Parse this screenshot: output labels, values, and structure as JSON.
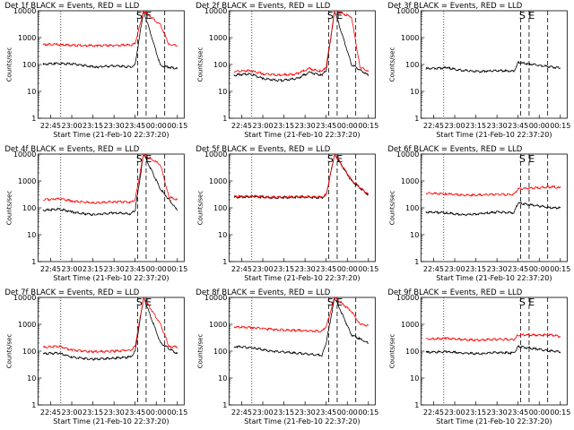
{
  "colors": {
    "events": "#000000",
    "lld": "#ff0000",
    "axis": "#000000"
  },
  "chart_data": [
    {
      "type": "line",
      "title": "Det 1f BLACK = Events, RED = LLD",
      "xlabel": "Start Time (21-Feb-10 22:37:20)",
      "ylabel": "Counts/sec",
      "xticks": [
        "22:45",
        "23:00",
        "23:15",
        "23:30",
        "23:45",
        "00:00",
        "00:15"
      ],
      "yticks": [
        "1",
        "10",
        "100",
        "1000",
        "10000"
      ],
      "markers": [
        "S",
        "E"
      ],
      "scale": "log",
      "ylim": [
        1,
        10000
      ],
      "series": [
        {
          "values": [
            [
              22.66,
              100
            ],
            [
              22.8,
              110
            ],
            [
              23.0,
              105
            ],
            [
              23.3,
              80
            ],
            [
              23.5,
              90
            ],
            [
              23.7,
              80
            ],
            [
              23.75,
              100
            ],
            [
              23.85,
              10000
            ],
            [
              24.05,
              90
            ],
            [
              24.25,
              70
            ]
          ]
        },
        {
          "values": [
            [
              22.66,
              550
            ],
            [
              22.8,
              560
            ],
            [
              23.0,
              520
            ],
            [
              23.3,
              500
            ],
            [
              23.5,
              520
            ],
            [
              23.7,
              530
            ],
            [
              23.75,
              600
            ],
            [
              23.85,
              10000
            ],
            [
              24.05,
              3000
            ],
            [
              24.15,
              550
            ],
            [
              24.25,
              520
            ]
          ]
        }
      ]
    },
    {
      "type": "line",
      "title": "Det 2f BLACK = Events, RED = LLD",
      "xlabel": "Start Time (21-Feb-10 22:37:20)",
      "ylabel": "Counts/sec",
      "xticks": [
        "22:45",
        "23:00",
        "23:15",
        "23:30",
        "23:45",
        "00:00",
        "00:15"
      ],
      "yticks": [
        "1",
        "10",
        "100",
        "1000",
        "10000"
      ],
      "markers": [
        "S",
        "E"
      ],
      "scale": "log",
      "ylim": [
        1,
        10000
      ],
      "series": [
        {
          "values": [
            [
              22.66,
              40
            ],
            [
              22.85,
              45
            ],
            [
              23.0,
              30
            ],
            [
              23.2,
              25
            ],
            [
              23.4,
              30
            ],
            [
              23.55,
              50
            ],
            [
              23.7,
              40
            ],
            [
              23.75,
              60
            ],
            [
              23.85,
              10000
            ],
            [
              24.05,
              100
            ],
            [
              24.25,
              40
            ]
          ]
        },
        {
          "values": [
            [
              22.66,
              55
            ],
            [
              22.85,
              60
            ],
            [
              23.0,
              45
            ],
            [
              23.2,
              40
            ],
            [
              23.4,
              45
            ],
            [
              23.55,
              70
            ],
            [
              23.7,
              55
            ],
            [
              23.75,
              80
            ],
            [
              23.85,
              10000
            ],
            [
              24.05,
              6000
            ],
            [
              24.15,
              80
            ],
            [
              24.25,
              55
            ]
          ]
        }
      ]
    },
    {
      "type": "line",
      "title": "Det 3f BLACK = Events, RED = LLD",
      "xlabel": "Start Time (21-Feb-10 22:37:20)",
      "ylabel": "Counts/sec",
      "xticks": [
        "22:45",
        "23:00",
        "23:15",
        "23:30",
        "23:45",
        "00:00",
        "00:15"
      ],
      "yticks": [
        "1",
        "10",
        "100",
        "1000",
        "10000"
      ],
      "markers": [
        "S",
        "E"
      ],
      "scale": "log",
      "ylim": [
        1,
        10000
      ],
      "series": [
        {
          "values": [
            [
              22.66,
              70
            ],
            [
              22.9,
              75
            ],
            [
              23.1,
              60
            ],
            [
              23.3,
              55
            ],
            [
              23.5,
              60
            ],
            [
              23.7,
              55
            ],
            [
              23.75,
              120
            ],
            [
              24.15,
              80
            ],
            [
              24.25,
              75
            ]
          ]
        }
      ]
    },
    {
      "type": "line",
      "title": "Det 4f BLACK = Events, RED = LLD",
      "xlabel": "Start Time (21-Feb-10 22:37:20)",
      "ylabel": "Counts/sec",
      "xticks": [
        "22:45",
        "23:00",
        "23:15",
        "23:30",
        "23:45",
        "00:00",
        "00:15"
      ],
      "yticks": [
        "1",
        "10",
        "100",
        "1000",
        "10000"
      ],
      "markers": [
        "S",
        "E"
      ],
      "scale": "log",
      "ylim": [
        1,
        10000
      ],
      "series": [
        {
          "values": [
            [
              22.66,
              80
            ],
            [
              22.85,
              90
            ],
            [
              23.0,
              70
            ],
            [
              23.25,
              55
            ],
            [
              23.5,
              65
            ],
            [
              23.7,
              60
            ],
            [
              23.75,
              80
            ],
            [
              23.85,
              10000
            ],
            [
              24.05,
              500
            ],
            [
              24.25,
              80
            ]
          ]
        },
        {
          "values": [
            [
              22.66,
              200
            ],
            [
              22.85,
              220
            ],
            [
              23.0,
              180
            ],
            [
              23.25,
              150
            ],
            [
              23.5,
              170
            ],
            [
              23.7,
              160
            ],
            [
              23.75,
              200
            ],
            [
              23.85,
              10000
            ],
            [
              24.05,
              4000
            ],
            [
              24.15,
              250
            ],
            [
              24.25,
              200
            ]
          ]
        }
      ]
    },
    {
      "type": "line",
      "title": "Det 5f BLACK = Events, RED = LLD",
      "xlabel": "Start Time (21-Feb-10 22:37:20)",
      "ylabel": "Counts/sec",
      "xticks": [
        "22:45",
        "23:00",
        "23:15",
        "23:30",
        "23:45",
        "00:00",
        "00:15"
      ],
      "yticks": [
        "1",
        "10",
        "100",
        "1000",
        "10000"
      ],
      "markers": [
        "S",
        "E"
      ],
      "scale": "log",
      "ylim": [
        1,
        10000
      ],
      "series": [
        {
          "values": [
            [
              22.66,
              250
            ],
            [
              22.9,
              260
            ],
            [
              23.1,
              240
            ],
            [
              23.3,
              245
            ],
            [
              23.5,
              250
            ],
            [
              23.7,
              240
            ],
            [
              23.75,
              300
            ],
            [
              23.85,
              10000
            ],
            [
              24.05,
              1000
            ],
            [
              24.25,
              300
            ]
          ]
        },
        {
          "values": [
            [
              22.66,
              260
            ],
            [
              22.9,
              270
            ],
            [
              23.1,
              250
            ],
            [
              23.3,
              255
            ],
            [
              23.5,
              260
            ],
            [
              23.7,
              250
            ],
            [
              23.75,
              310
            ],
            [
              23.85,
              10000
            ],
            [
              24.05,
              1100
            ],
            [
              24.25,
              310
            ]
          ]
        }
      ]
    },
    {
      "type": "line",
      "title": "Det 6f BLACK = Events, RED = LLD",
      "xlabel": "Start Time (21-Feb-10 22:37:20)",
      "ylabel": "Counts/sec",
      "xticks": [
        "22:45",
        "23:00",
        "23:15",
        "23:30",
        "23:45",
        "00:00",
        "00:15"
      ],
      "yticks": [
        "1",
        "10",
        "100",
        "1000",
        "10000"
      ],
      "markers": [
        "S",
        "E"
      ],
      "scale": "log",
      "ylim": [
        1,
        10000
      ],
      "series": [
        {
          "values": [
            [
              22.66,
              70
            ],
            [
              22.9,
              65
            ],
            [
              23.1,
              55
            ],
            [
              23.3,
              60
            ],
            [
              23.5,
              70
            ],
            [
              23.7,
              65
            ],
            [
              23.75,
              150
            ],
            [
              24.15,
              100
            ],
            [
              24.25,
              100
            ]
          ]
        },
        {
          "values": [
            [
              22.66,
              350
            ],
            [
              22.9,
              330
            ],
            [
              23.1,
              300
            ],
            [
              23.3,
              300
            ],
            [
              23.5,
              320
            ],
            [
              23.7,
              310
            ],
            [
              23.75,
              500
            ],
            [
              24.15,
              600
            ],
            [
              24.25,
              550
            ]
          ]
        }
      ]
    },
    {
      "type": "line",
      "title": "Det 7f BLACK = Events, RED = LLD",
      "xlabel": "Start Time (21-Feb-10 22:37:20)",
      "ylabel": "Counts/sec",
      "xticks": [
        "22:45",
        "23:00",
        "23:15",
        "23:30",
        "23:45",
        "00:00",
        "00:15"
      ],
      "yticks": [
        "1",
        "10",
        "100",
        "1000",
        "10000"
      ],
      "markers": [
        "S",
        "E"
      ],
      "scale": "log",
      "ylim": [
        1,
        10000
      ],
      "series": [
        {
          "values": [
            [
              22.66,
              80
            ],
            [
              22.85,
              85
            ],
            [
              23.0,
              60
            ],
            [
              23.25,
              50
            ],
            [
              23.5,
              55
            ],
            [
              23.7,
              60
            ],
            [
              23.75,
              100
            ],
            [
              23.85,
              10000
            ],
            [
              24.05,
              200
            ],
            [
              24.25,
              80
            ]
          ]
        },
        {
          "values": [
            [
              22.66,
              140
            ],
            [
              22.85,
              150
            ],
            [
              23.0,
              110
            ],
            [
              23.25,
              95
            ],
            [
              23.5,
              100
            ],
            [
              23.7,
              110
            ],
            [
              23.75,
              150
            ],
            [
              23.85,
              10000
            ],
            [
              24.05,
              1000
            ],
            [
              24.15,
              150
            ],
            [
              24.25,
              140
            ]
          ]
        }
      ]
    },
    {
      "type": "line",
      "title": "Det 8f BLACK = Events, RED = LLD",
      "xlabel": "Start Time (21-Feb-10 22:37:20)",
      "ylabel": "Counts/sec",
      "xticks": [
        "22:45",
        "23:00",
        "23:15",
        "23:30",
        "23:45",
        "00:00",
        "00:15"
      ],
      "yticks": [
        "1",
        "10",
        "100",
        "1000",
        "10000"
      ],
      "markers": [
        "S",
        "E"
      ],
      "scale": "log",
      "ylim": [
        1,
        10000
      ],
      "series": [
        {
          "values": [
            [
              22.66,
              150
            ],
            [
              22.9,
              130
            ],
            [
              23.1,
              100
            ],
            [
              23.3,
              90
            ],
            [
              23.5,
              80
            ],
            [
              23.7,
              70
            ],
            [
              23.75,
              200
            ],
            [
              23.85,
              10000
            ],
            [
              24.05,
              400
            ],
            [
              24.25,
              200
            ]
          ]
        },
        {
          "values": [
            [
              22.66,
              800
            ],
            [
              22.9,
              750
            ],
            [
              23.1,
              650
            ],
            [
              23.3,
              600
            ],
            [
              23.5,
              580
            ],
            [
              23.7,
              550
            ],
            [
              23.75,
              800
            ],
            [
              23.85,
              10000
            ],
            [
              24.05,
              3000
            ],
            [
              24.15,
              1000
            ],
            [
              24.25,
              900
            ]
          ]
        }
      ]
    },
    {
      "type": "line",
      "title": "Det 9f BLACK = Events, RED = LLD",
      "xlabel": "Start Time (21-Feb-10 22:37:20)",
      "ylabel": "Counts/sec",
      "xticks": [
        "22:45",
        "23:00",
        "23:15",
        "23:30",
        "23:45",
        "00:00",
        "00:15"
      ],
      "yticks": [
        "1",
        "10",
        "100",
        "1000",
        "10000"
      ],
      "markers": [
        "S",
        "E"
      ],
      "scale": "log",
      "ylim": [
        1,
        10000
      ],
      "series": [
        {
          "values": [
            [
              22.66,
              90
            ],
            [
              22.9,
              95
            ],
            [
              23.1,
              85
            ],
            [
              23.3,
              80
            ],
            [
              23.5,
              90
            ],
            [
              23.7,
              85
            ],
            [
              23.75,
              150
            ],
            [
              24.15,
              100
            ],
            [
              24.25,
              95
            ]
          ]
        },
        {
          "values": [
            [
              22.66,
              280
            ],
            [
              22.9,
              300
            ],
            [
              23.1,
              270
            ],
            [
              23.3,
              260
            ],
            [
              23.5,
              280
            ],
            [
              23.7,
              270
            ],
            [
              23.75,
              400
            ],
            [
              24.15,
              400
            ],
            [
              24.25,
              350
            ]
          ]
        }
      ]
    }
  ]
}
